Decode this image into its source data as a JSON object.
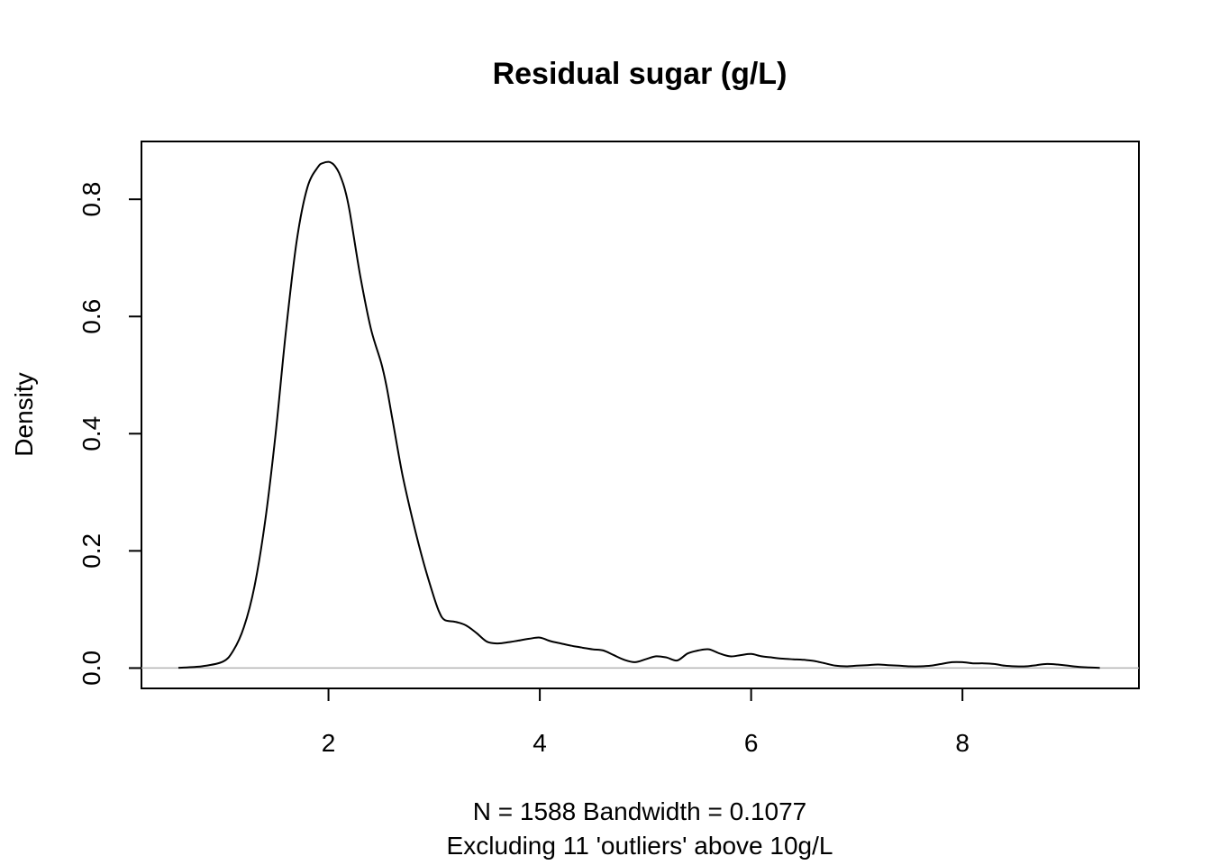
{
  "chart_data": {
    "type": "line",
    "title": "Residual sugar (g/L)",
    "ylabel": "Density",
    "subtitle_lines": [
      "N = 1588   Bandwidth = 0.1077",
      "Excluding 11 'outliers' above 10g/L"
    ],
    "xlim": [
      0.23,
      9.67
    ],
    "ylim": [
      -0.0347,
      0.8987
    ],
    "x_ticks": [
      2,
      4,
      6,
      8
    ],
    "y_ticks": [
      0.0,
      0.2,
      0.4,
      0.6,
      0.8
    ],
    "x_tick_labels": [
      "2",
      "4",
      "6",
      "8"
    ],
    "y_tick_labels": [
      "0.0",
      "0.2",
      "0.4",
      "0.6",
      "0.8"
    ],
    "baseline": 0,
    "baseline_color": "#b3b3b3",
    "line_color": "#000000",
    "grid": false,
    "series": [
      {
        "x": [
          0.58,
          0.8,
          1.0,
          1.1,
          1.2,
          1.3,
          1.4,
          1.5,
          1.6,
          1.7,
          1.8,
          1.9,
          1.95,
          2.0,
          2.03,
          2.06,
          2.1,
          2.15,
          2.2,
          2.3,
          2.4,
          2.5,
          2.55,
          2.6,
          2.7,
          2.8,
          2.9,
          3.0,
          3.05,
          3.1,
          3.2,
          3.3,
          3.4,
          3.5,
          3.6,
          3.7,
          3.8,
          3.9,
          4.0,
          4.1,
          4.2,
          4.3,
          4.4,
          4.5,
          4.6,
          4.7,
          4.8,
          4.9,
          5.0,
          5.1,
          5.2,
          5.3,
          5.4,
          5.5,
          5.6,
          5.7,
          5.8,
          5.9,
          6.0,
          6.1,
          6.2,
          6.3,
          6.4,
          6.5,
          6.6,
          6.7,
          6.8,
          6.9,
          7.0,
          7.1,
          7.2,
          7.3,
          7.4,
          7.5,
          7.6,
          7.7,
          7.8,
          7.9,
          8.0,
          8.1,
          8.2,
          8.3,
          8.4,
          8.5,
          8.6,
          8.7,
          8.8,
          8.9,
          9.0,
          9.1,
          9.2,
          9.3
        ],
        "y": [
          0.0005,
          0.003,
          0.011,
          0.03,
          0.07,
          0.14,
          0.25,
          0.4,
          0.58,
          0.73,
          0.82,
          0.855,
          0.862,
          0.864,
          0.862,
          0.857,
          0.845,
          0.82,
          0.78,
          0.67,
          0.58,
          0.52,
          0.48,
          0.43,
          0.33,
          0.25,
          0.18,
          0.12,
          0.095,
          0.082,
          0.079,
          0.073,
          0.06,
          0.045,
          0.042,
          0.044,
          0.047,
          0.05,
          0.052,
          0.046,
          0.042,
          0.038,
          0.035,
          0.032,
          0.03,
          0.022,
          0.014,
          0.01,
          0.015,
          0.02,
          0.018,
          0.013,
          0.025,
          0.03,
          0.032,
          0.025,
          0.02,
          0.022,
          0.024,
          0.02,
          0.018,
          0.016,
          0.015,
          0.014,
          0.012,
          0.008,
          0.004,
          0.003,
          0.004,
          0.005,
          0.006,
          0.005,
          0.004,
          0.003,
          0.003,
          0.004,
          0.007,
          0.01,
          0.01,
          0.008,
          0.008,
          0.007,
          0.004,
          0.003,
          0.003,
          0.005,
          0.007,
          0.006,
          0.004,
          0.002,
          0.001,
          0.0003
        ]
      }
    ]
  }
}
